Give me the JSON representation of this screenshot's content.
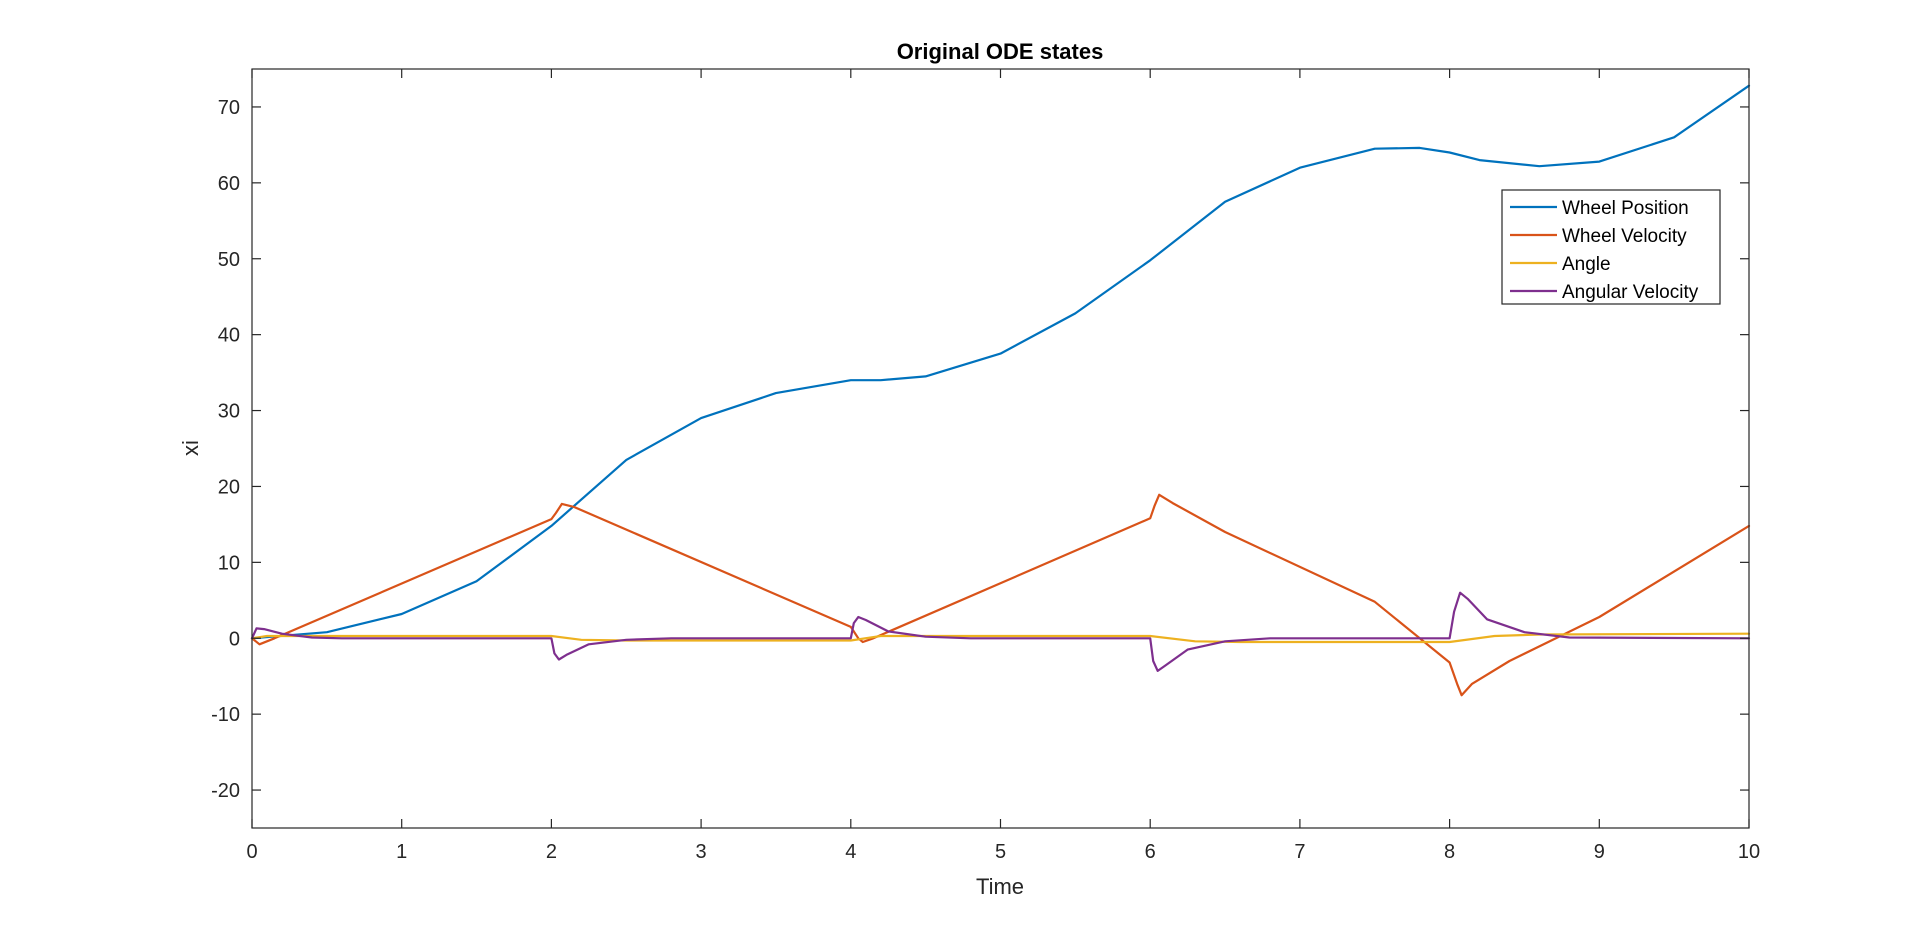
{
  "chart_data": {
    "type": "line",
    "title": "Original ODE states",
    "xlabel": "Time",
    "ylabel": "xi",
    "xlim": [
      0,
      10
    ],
    "ylim": [
      -25,
      75
    ],
    "xticks": [
      0,
      1,
      2,
      3,
      4,
      5,
      6,
      7,
      8,
      9,
      10
    ],
    "yticks": [
      -20,
      -10,
      0,
      10,
      20,
      30,
      40,
      50,
      60,
      70
    ],
    "xtick_labels": [
      "0",
      "1",
      "2",
      "3",
      "4",
      "5",
      "6",
      "7",
      "8",
      "9",
      "10"
    ],
    "ytick_labels": [
      "-20",
      "-10",
      "0",
      "10",
      "20",
      "30",
      "40",
      "50",
      "60",
      "70"
    ],
    "grid": false,
    "box": true,
    "legend_position": "top-right",
    "series": [
      {
        "name": "Wheel Position",
        "color": "#0072BD",
        "points": [
          [
            0,
            0
          ],
          [
            0.5,
            0.8
          ],
          [
            1,
            3.2
          ],
          [
            1.5,
            7.5
          ],
          [
            2,
            14.8
          ],
          [
            2.5,
            23.5
          ],
          [
            3,
            29
          ],
          [
            3.5,
            32.3
          ],
          [
            4,
            34
          ],
          [
            4.2,
            34
          ],
          [
            4.5,
            34.5
          ],
          [
            5,
            37.5
          ],
          [
            5.5,
            42.8
          ],
          [
            6,
            49.8
          ],
          [
            6.5,
            57.5
          ],
          [
            7,
            62
          ],
          [
            7.5,
            64.5
          ],
          [
            7.8,
            64.6
          ],
          [
            8,
            64
          ],
          [
            8.2,
            63
          ],
          [
            8.6,
            62.2
          ],
          [
            9,
            62.8
          ],
          [
            9.5,
            66
          ],
          [
            10,
            72.8
          ]
        ]
      },
      {
        "name": "Wheel Velocity",
        "color": "#D95319",
        "points": [
          [
            0,
            0
          ],
          [
            0.05,
            -0.8
          ],
          [
            0.15,
            0
          ],
          [
            2,
            15.7
          ],
          [
            2.03,
            16.5
          ],
          [
            2.07,
            17.7
          ],
          [
            2.15,
            17.3
          ],
          [
            4,
            1.5
          ],
          [
            4.05,
            0
          ],
          [
            4.08,
            -0.5
          ],
          [
            4.15,
            0
          ],
          [
            6,
            15.8
          ],
          [
            6.03,
            17.5
          ],
          [
            6.06,
            18.9
          ],
          [
            6.15,
            17.8
          ],
          [
            6.5,
            14
          ],
          [
            7.5,
            4.8
          ],
          [
            8,
            -3.2
          ],
          [
            8.05,
            -6
          ],
          [
            8.08,
            -7.5
          ],
          [
            8.15,
            -6
          ],
          [
            8.4,
            -3
          ],
          [
            9,
            2.8
          ],
          [
            10,
            14.8
          ]
        ]
      },
      {
        "name": "Angle",
        "color": "#EDB120",
        "points": [
          [
            0,
            0
          ],
          [
            0.1,
            0.3
          ],
          [
            2,
            0.3
          ],
          [
            2.2,
            -0.2
          ],
          [
            2.5,
            -0.3
          ],
          [
            4,
            -0.3
          ],
          [
            4.2,
            0.3
          ],
          [
            6,
            0.3
          ],
          [
            6.3,
            -0.4
          ],
          [
            6.6,
            -0.5
          ],
          [
            8,
            -0.5
          ],
          [
            8.3,
            0.3
          ],
          [
            8.6,
            0.5
          ],
          [
            10,
            0.6
          ]
        ]
      },
      {
        "name": "Angular Velocity",
        "color": "#7E2F8E",
        "points": [
          [
            0,
            0
          ],
          [
            0.03,
            1.3
          ],
          [
            0.08,
            1.2
          ],
          [
            0.2,
            0.6
          ],
          [
            0.4,
            0.1
          ],
          [
            0.6,
            0
          ],
          [
            2,
            0
          ],
          [
            2.02,
            -2
          ],
          [
            2.05,
            -2.8
          ],
          [
            2.1,
            -2.2
          ],
          [
            2.25,
            -0.8
          ],
          [
            2.5,
            -0.2
          ],
          [
            2.8,
            0
          ],
          [
            4,
            0
          ],
          [
            4.02,
            2
          ],
          [
            4.05,
            2.8
          ],
          [
            4.1,
            2.4
          ],
          [
            4.25,
            0.9
          ],
          [
            4.5,
            0.2
          ],
          [
            4.8,
            0
          ],
          [
            6,
            0
          ],
          [
            6.02,
            -3
          ],
          [
            6.05,
            -4.3
          ],
          [
            6.1,
            -3.6
          ],
          [
            6.25,
            -1.5
          ],
          [
            6.5,
            -0.4
          ],
          [
            6.8,
            0
          ],
          [
            8,
            0
          ],
          [
            8.03,
            3.5
          ],
          [
            8.07,
            6
          ],
          [
            8.12,
            5.2
          ],
          [
            8.25,
            2.5
          ],
          [
            8.5,
            0.8
          ],
          [
            8.8,
            0.1
          ],
          [
            10,
            0
          ]
        ]
      }
    ]
  }
}
